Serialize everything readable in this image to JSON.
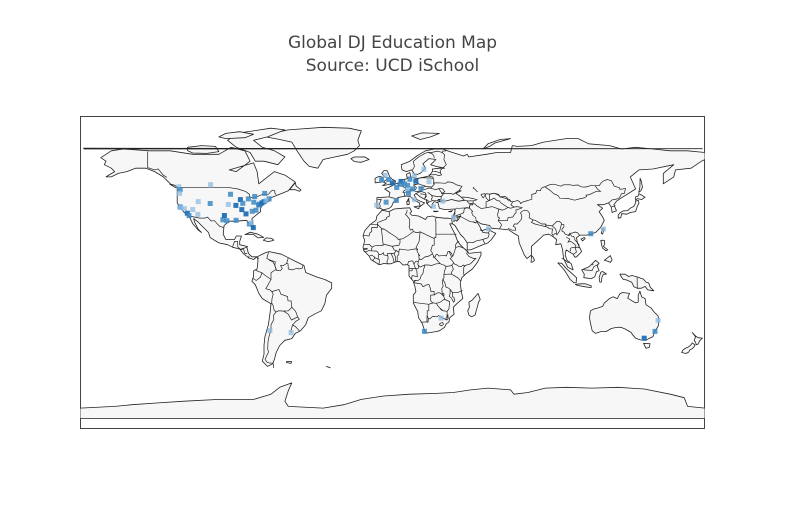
{
  "title": "Global DJ Education Map",
  "subtitle": "Source: UCD iSchool",
  "colors": {
    "frame": "#444444",
    "land": "#f7f7f7",
    "border": "#222222",
    "marker_dark": "#1f6fb4",
    "marker_mid": "#3d8ac6",
    "marker_light": "#8fbce0"
  },
  "chart_data": {
    "type": "scatter",
    "projection": "equirectangular",
    "marker_symbol": "square",
    "lon_range": [
      -180,
      180
    ],
    "lat_range": [
      -90,
      90
    ],
    "points": [
      {
        "lon": -123.1,
        "lat": 49.3,
        "shade": "light"
      },
      {
        "lon": -122.3,
        "lat": 47.6,
        "shade": "mid"
      },
      {
        "lon": -122.7,
        "lat": 45.5,
        "shade": "light"
      },
      {
        "lon": -122.4,
        "lat": 37.8,
        "shade": "mid"
      },
      {
        "lon": -121.9,
        "lat": 37.3,
        "shade": "light"
      },
      {
        "lon": -118.2,
        "lat": 34.1,
        "shade": "dark"
      },
      {
        "lon": -117.2,
        "lat": 32.7,
        "shade": "mid"
      },
      {
        "lon": -119.8,
        "lat": 36.7,
        "shade": "light"
      },
      {
        "lon": -112.1,
        "lat": 33.4,
        "shade": "light"
      },
      {
        "lon": -115.1,
        "lat": 36.2,
        "shade": "light"
      },
      {
        "lon": -105.0,
        "lat": 39.7,
        "shade": "mid"
      },
      {
        "lon": -111.9,
        "lat": 40.8,
        "shade": "light"
      },
      {
        "lon": -104.8,
        "lat": 50.5,
        "shade": "light"
      },
      {
        "lon": -97.7,
        "lat": 30.3,
        "shade": "mid"
      },
      {
        "lon": -96.8,
        "lat": 32.8,
        "shade": "dark"
      },
      {
        "lon": -95.4,
        "lat": 29.8,
        "shade": "mid"
      },
      {
        "lon": -94.6,
        "lat": 39.1,
        "shade": "light"
      },
      {
        "lon": -93.3,
        "lat": 45.0,
        "shade": "mid"
      },
      {
        "lon": -90.2,
        "lat": 38.6,
        "shade": "dark"
      },
      {
        "lon": -90.1,
        "lat": 30.0,
        "shade": "mid"
      },
      {
        "lon": -87.6,
        "lat": 41.9,
        "shade": "dark"
      },
      {
        "lon": -86.8,
        "lat": 36.2,
        "shade": "dark"
      },
      {
        "lon": -86.2,
        "lat": 39.8,
        "shade": "mid"
      },
      {
        "lon": -84.4,
        "lat": 33.7,
        "shade": "dark"
      },
      {
        "lon": -83.0,
        "lat": 42.3,
        "shade": "mid"
      },
      {
        "lon": -82.5,
        "lat": 27.9,
        "shade": "mid"
      },
      {
        "lon": -81.4,
        "lat": 28.5,
        "shade": "light"
      },
      {
        "lon": -80.2,
        "lat": 25.8,
        "shade": "dark"
      },
      {
        "lon": -80.8,
        "lat": 35.2,
        "shade": "mid"
      },
      {
        "lon": -79.4,
        "lat": 43.7,
        "shade": "mid"
      },
      {
        "lon": -79.9,
        "lat": 40.4,
        "shade": "mid"
      },
      {
        "lon": -78.6,
        "lat": 35.8,
        "shade": "mid"
      },
      {
        "lon": -77.0,
        "lat": 38.9,
        "shade": "dark"
      },
      {
        "lon": -76.6,
        "lat": 39.3,
        "shade": "mid"
      },
      {
        "lon": -75.2,
        "lat": 40.0,
        "shade": "dark"
      },
      {
        "lon": -74.0,
        "lat": 40.7,
        "shade": "dark"
      },
      {
        "lon": -73.6,
        "lat": 45.5,
        "shade": "mid"
      },
      {
        "lon": -71.1,
        "lat": 42.4,
        "shade": "mid"
      },
      {
        "lon": -72.9,
        "lat": 41.3,
        "shade": "light"
      },
      {
        "lon": -9.1,
        "lat": 38.7,
        "shade": "light"
      },
      {
        "lon": -6.3,
        "lat": 53.3,
        "shade": "mid"
      },
      {
        "lon": -3.7,
        "lat": 40.4,
        "shade": "mid"
      },
      {
        "lon": 2.2,
        "lat": 41.4,
        "shade": "mid"
      },
      {
        "lon": -0.1,
        "lat": 51.5,
        "shade": "dark"
      },
      {
        "lon": -2.2,
        "lat": 53.5,
        "shade": "mid"
      },
      {
        "lon": -4.2,
        "lat": 55.9,
        "shade": "light"
      },
      {
        "lon": 2.4,
        "lat": 48.9,
        "shade": "mid"
      },
      {
        "lon": 4.9,
        "lat": 52.4,
        "shade": "dark"
      },
      {
        "lon": 4.4,
        "lat": 50.8,
        "shade": "mid"
      },
      {
        "lon": 6.9,
        "lat": 50.9,
        "shade": "mid"
      },
      {
        "lon": 8.7,
        "lat": 50.1,
        "shade": "mid"
      },
      {
        "lon": 10.0,
        "lat": 53.6,
        "shade": "mid"
      },
      {
        "lon": 13.4,
        "lat": 52.5,
        "shade": "dark"
      },
      {
        "lon": 11.6,
        "lat": 48.1,
        "shade": "mid"
      },
      {
        "lon": 16.4,
        "lat": 48.2,
        "shade": "mid"
      },
      {
        "lon": 8.5,
        "lat": 47.4,
        "shade": "light"
      },
      {
        "lon": 12.5,
        "lat": 41.9,
        "shade": "light"
      },
      {
        "lon": 9.2,
        "lat": 45.5,
        "shade": "mid"
      },
      {
        "lon": 18.1,
        "lat": 59.3,
        "shade": "light"
      },
      {
        "lon": 12.6,
        "lat": 55.7,
        "shade": "light"
      },
      {
        "lon": 21.0,
        "lat": 52.2,
        "shade": "light"
      },
      {
        "lon": 23.7,
        "lat": 38.0,
        "shade": "light"
      },
      {
        "lon": 28.98,
        "lat": 41.0,
        "shade": "light"
      },
      {
        "lon": 35.2,
        "lat": 31.8,
        "shade": "light"
      },
      {
        "lon": 55.3,
        "lat": 25.2,
        "shade": "light"
      },
      {
        "lon": 28.0,
        "lat": -26.2,
        "shade": "light"
      },
      {
        "lon": 18.4,
        "lat": -33.9,
        "shade": "mid"
      },
      {
        "lon": 114.2,
        "lat": 22.3,
        "shade": "mid"
      },
      {
        "lon": 121.5,
        "lat": 25.0,
        "shade": "light"
      },
      {
        "lon": 151.2,
        "lat": -33.9,
        "shade": "mid"
      },
      {
        "lon": 144.96,
        "lat": -37.8,
        "shade": "dark"
      },
      {
        "lon": 153.0,
        "lat": -27.5,
        "shade": "light"
      },
      {
        "lon": -70.6,
        "lat": -33.4,
        "shade": "light"
      },
      {
        "lon": -58.4,
        "lat": -34.6,
        "shade": "light"
      }
    ]
  }
}
